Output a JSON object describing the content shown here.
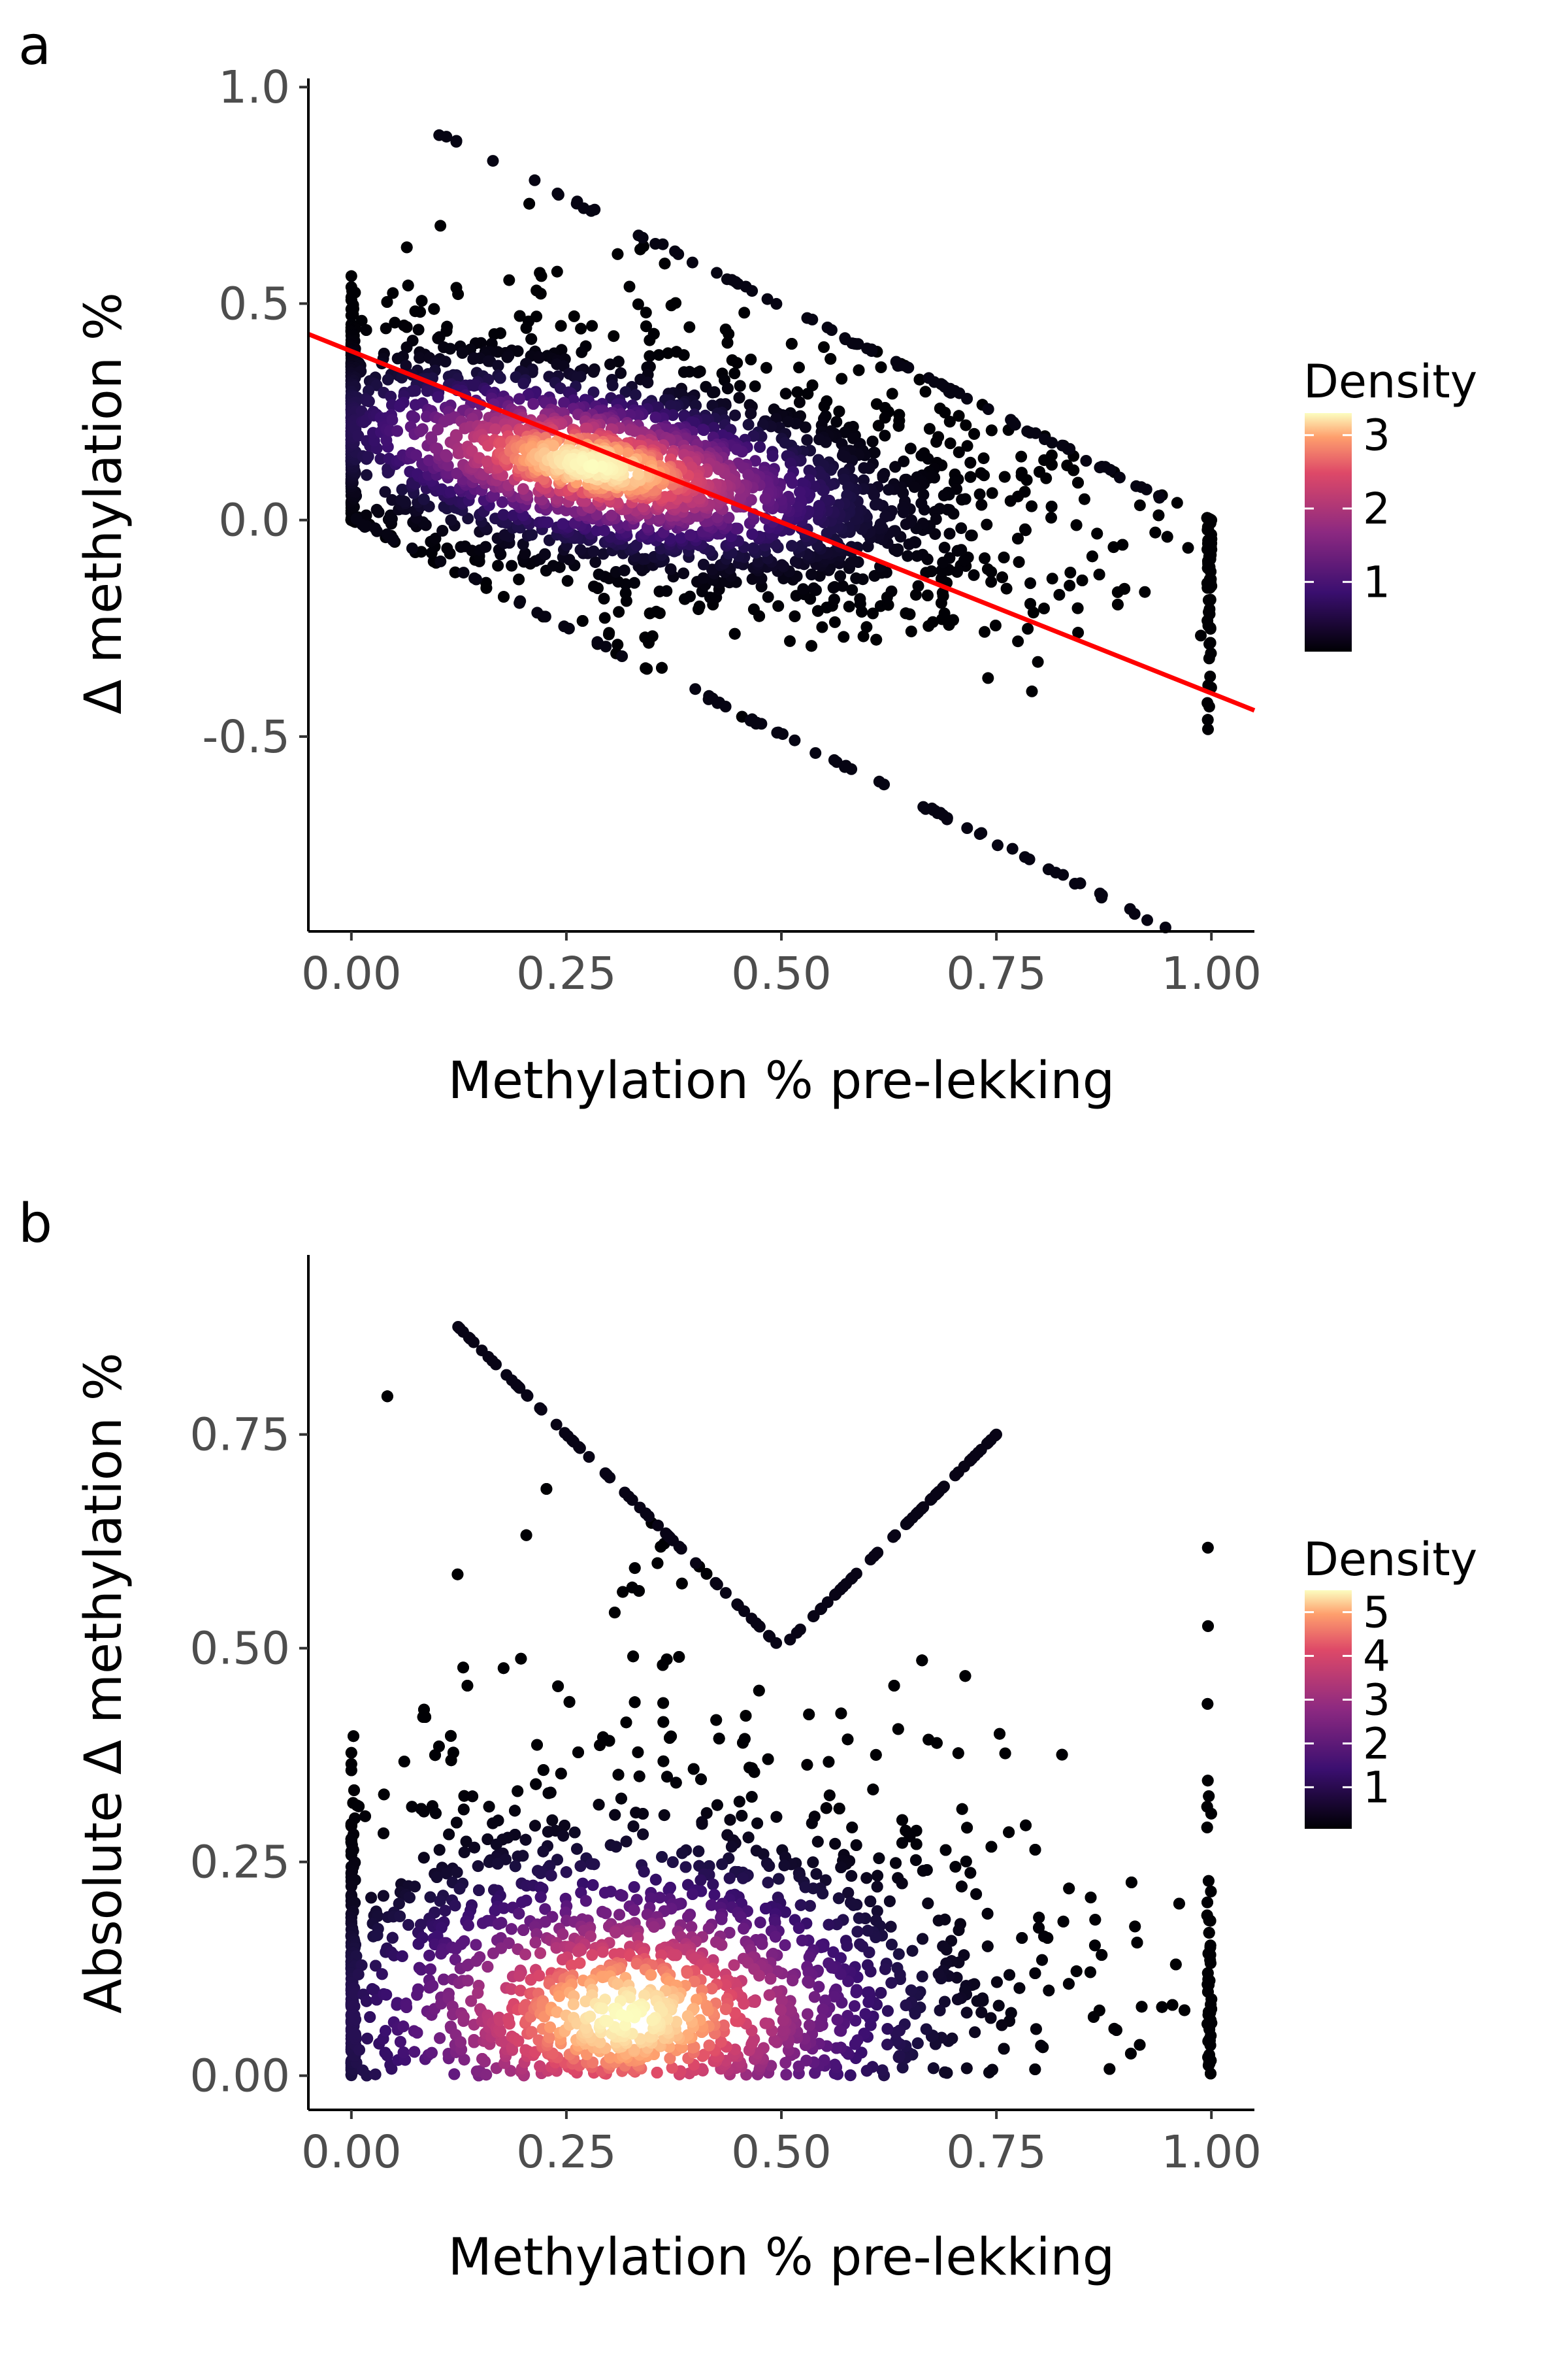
{
  "chart_data": [
    {
      "panel_label": "a",
      "type": "scatter",
      "xlabel": "Methylation % pre-lekking",
      "ylabel": "Δ methylation %",
      "xlim": [
        -0.05,
        1.05
      ],
      "ylim": [
        -0.95,
        1.02
      ],
      "x_ticks": [
        "0.00",
        "0.25",
        "0.50",
        "0.75",
        "1.00"
      ],
      "x_tick_values": [
        0,
        0.25,
        0.5,
        0.75,
        1.0
      ],
      "y_ticks": [
        "-0.5",
        "0.0",
        "0.5",
        "1.0"
      ],
      "y_tick_values": [
        -0.5,
        0.0,
        0.5,
        1.0
      ],
      "color_by": "density",
      "legend": {
        "title": "Density",
        "ticks": [
          "1",
          "2",
          "3"
        ],
        "tick_values": [
          1,
          2,
          3
        ],
        "range": [
          0.05,
          3.3
        ],
        "placement": "right"
      },
      "regression_line": {
        "color": "#ff0000",
        "intercept": 0.39,
        "slope": -0.79
      },
      "point_cloud": {
        "main_peak": {
          "x": 0.28,
          "y": 0.1
        },
        "band_top": "y = 1 - x",
        "band_bottom": "y = -x"
      }
    },
    {
      "panel_label": "b",
      "type": "scatter",
      "xlabel": "Methylation % pre-lekking",
      "ylabel": "Absolute Δ methylation %",
      "xlim": [
        -0.05,
        1.05
      ],
      "ylim": [
        -0.04,
        0.96
      ],
      "x_ticks": [
        "0.00",
        "0.25",
        "0.50",
        "0.75",
        "1.00"
      ],
      "x_tick_values": [
        0,
        0.25,
        0.5,
        0.75,
        1.0
      ],
      "y_ticks": [
        "0.00",
        "0.25",
        "0.50",
        "0.75"
      ],
      "y_tick_values": [
        0,
        0.25,
        0.5,
        0.75
      ],
      "color_by": "density",
      "legend": {
        "title": "Density",
        "ticks": [
          "1",
          "2",
          "3",
          "4",
          "5"
        ],
        "tick_values": [
          1,
          2,
          3,
          4,
          5
        ],
        "range": [
          0.05,
          5.5
        ],
        "placement": "right"
      },
      "point_cloud": {
        "main_peak": {
          "x": 0.3,
          "y": 0.07
        },
        "envelope": "y = |x - 1| or y = x"
      }
    }
  ]
}
